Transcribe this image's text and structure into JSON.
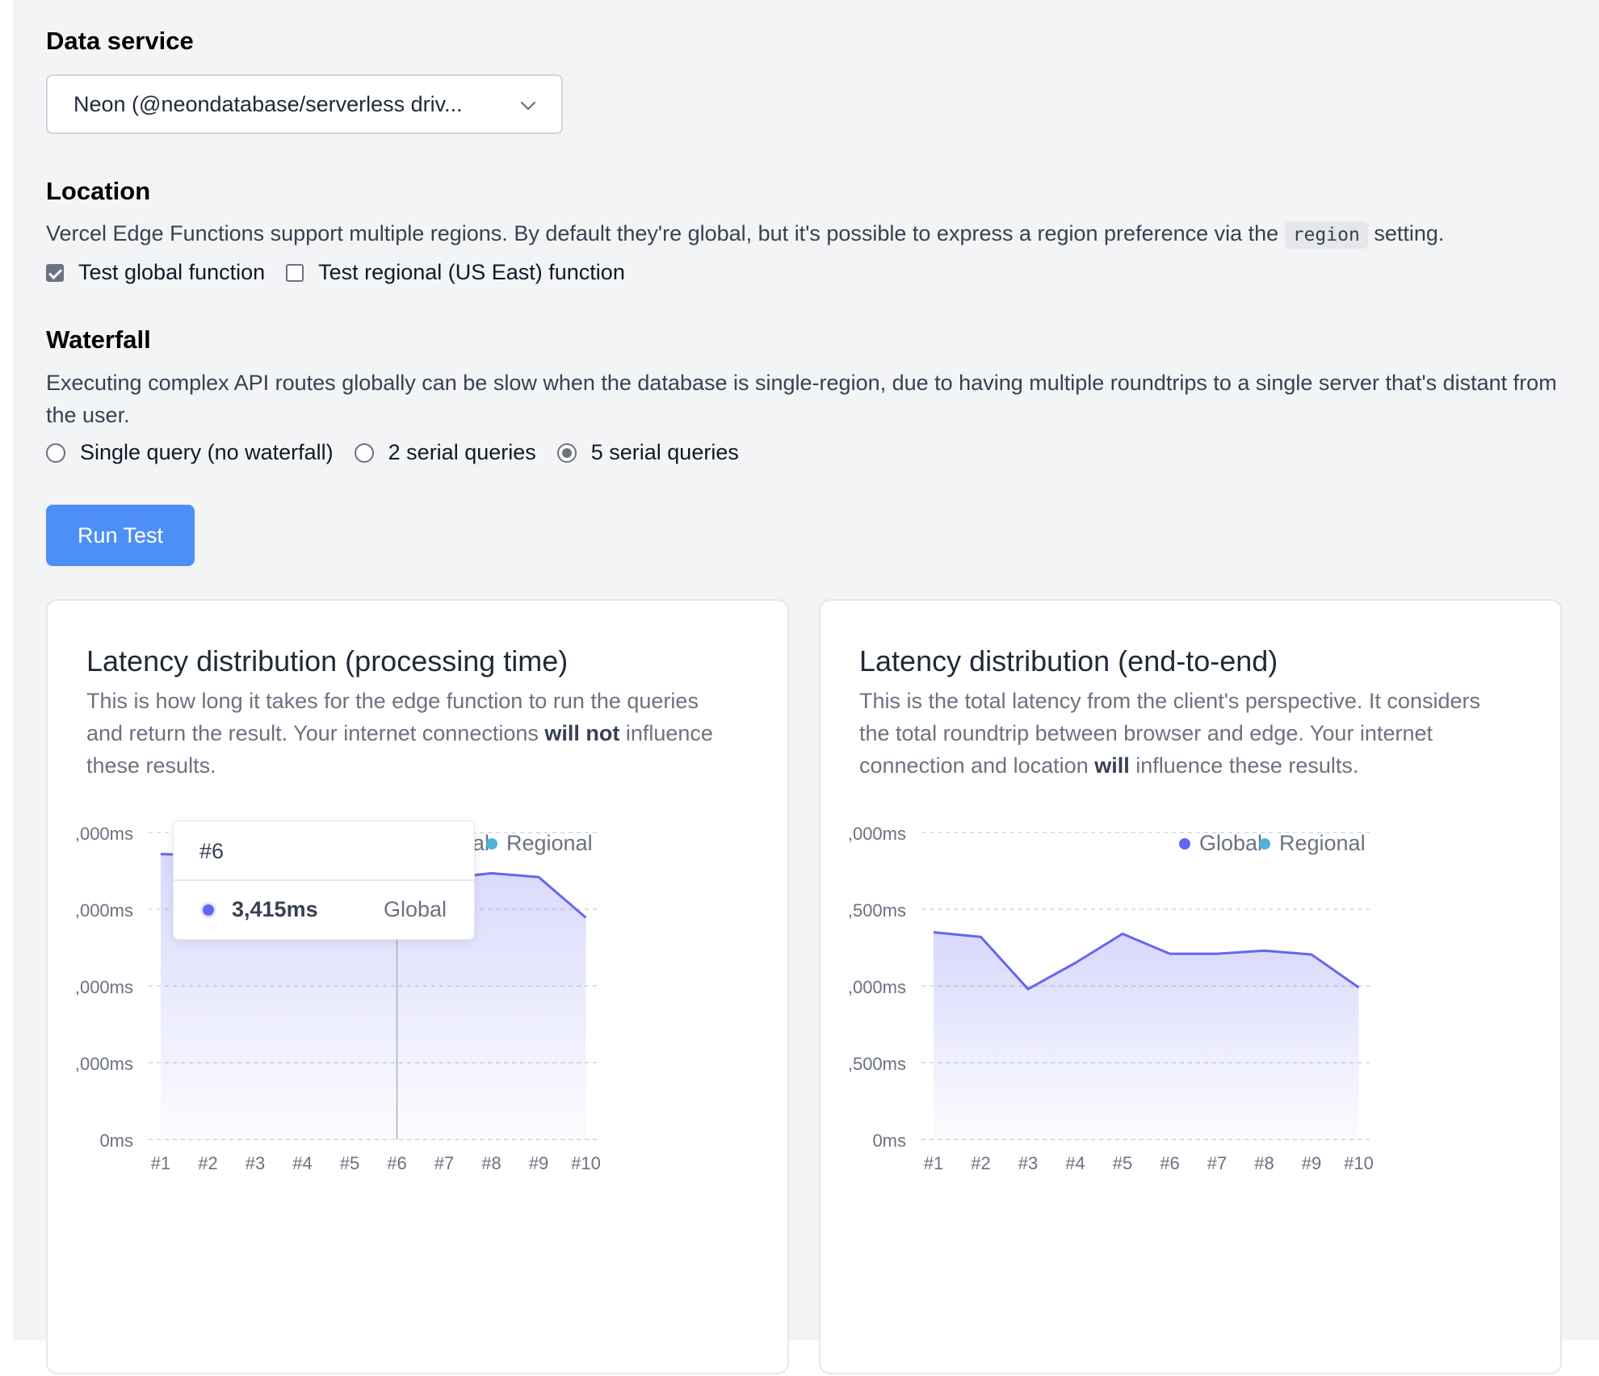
{
  "data_service": {
    "heading": "Data service",
    "selected": "Neon (@neondatabase/serverless driv...",
    "chevron_icon": "chevron-down-icon"
  },
  "location": {
    "heading": "Location",
    "desc_before": "Vercel Edge Functions support multiple regions. By default they're global, but it's possible to express a region preference via the",
    "desc_code": "region",
    "desc_after": "setting.",
    "options": [
      {
        "label": "Test global function",
        "checked": true
      },
      {
        "label": "Test regional (US East) function",
        "checked": false
      }
    ]
  },
  "waterfall": {
    "heading": "Waterfall",
    "desc": "Executing complex API routes globally can be slow when the database is single-region, due to having multiple roundtrips to a single server that's distant from the user.",
    "options": [
      {
        "label": "Single query (no waterfall)",
        "checked": false
      },
      {
        "label": "2 serial queries",
        "checked": false
      },
      {
        "label": "5 serial queries",
        "checked": true
      }
    ]
  },
  "run_button": {
    "label": "Run Test"
  },
  "colors": {
    "global": "#6366f1",
    "regional": "#4fb3d9",
    "button": "#4d8ff7"
  },
  "cards": [
    {
      "title": "Latency distribution (processing time)",
      "desc_parts": [
        {
          "text": "This is how long it takes for the edge function to run the queries and return the result. Your internet connections ",
          "bold": false
        },
        {
          "text": "will not",
          "bold": true
        },
        {
          "text": " influence these results.",
          "bold": false
        }
      ],
      "tooltip": {
        "title": "#6",
        "value": "3,415ms",
        "series": "Global"
      }
    },
    {
      "title": "Latency distribution (end-to-end)",
      "desc_parts": [
        {
          "text": "This is the total latency from the client's perspective. It considers the total roundtrip between browser and edge. Your internet connection and location ",
          "bold": false
        },
        {
          "text": "will",
          "bold": true
        },
        {
          "text": " influence these results.",
          "bold": false
        }
      ]
    }
  ],
  "chart_data": [
    {
      "type": "area",
      "title": "Latency distribution (processing time)",
      "categories": [
        "#1",
        "#2",
        "#3",
        "#4",
        "#5",
        "#6",
        "#7",
        "#8",
        "#9",
        "#10"
      ],
      "y_tick_labels": [
        "0ms",
        ",000ms",
        ",000ms",
        ",000ms",
        ",000ms"
      ],
      "ylim": [
        0,
        4000
      ],
      "legend": [
        "Global",
        "Regional"
      ],
      "legend_position": "top-right",
      "grid": true,
      "series": [
        {
          "name": "Global",
          "values": [
            3720,
            3700,
            2880,
            3280,
            3700,
            3415,
            3400,
            3470,
            3420,
            2890
          ]
        }
      ]
    },
    {
      "type": "area",
      "title": "Latency distribution (end-to-end)",
      "categories": [
        "#1",
        "#2",
        "#3",
        "#4",
        "#5",
        "#6",
        "#7",
        "#8",
        "#9",
        "#10"
      ],
      "y_tick_labels": [
        "0ms",
        ",500ms",
        ",000ms",
        ",500ms",
        ",000ms"
      ],
      "ylim": [
        0,
        4000
      ],
      "legend": [
        "Global",
        "Regional"
      ],
      "legend_position": "top-right",
      "grid": true,
      "series": [
        {
          "name": "Global",
          "values": [
            2700,
            2640,
            1960,
            2300,
            2680,
            2420,
            2420,
            2460,
            2410,
            1980
          ]
        }
      ]
    }
  ]
}
